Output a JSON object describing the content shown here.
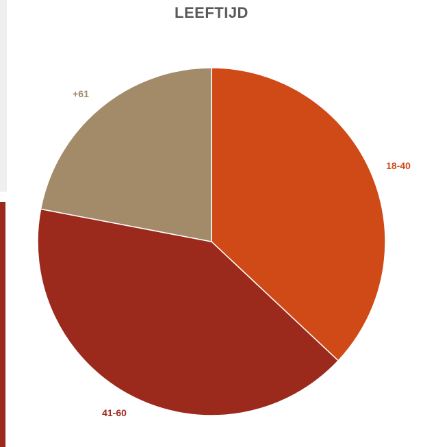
{
  "chart_data": {
    "type": "pie",
    "title": "LEEFTIJD",
    "categories": [
      "18-40",
      "41-60",
      "+61"
    ],
    "values": [
      37,
      41,
      22
    ],
    "colors": [
      "#d04a17",
      "#9b2a1d",
      "#a38b6a"
    ],
    "label_colors": [
      "#d04a17",
      "#9b2a1d",
      "#a38b6a"
    ],
    "start_angle": "12 o'clock, clockwise"
  }
}
